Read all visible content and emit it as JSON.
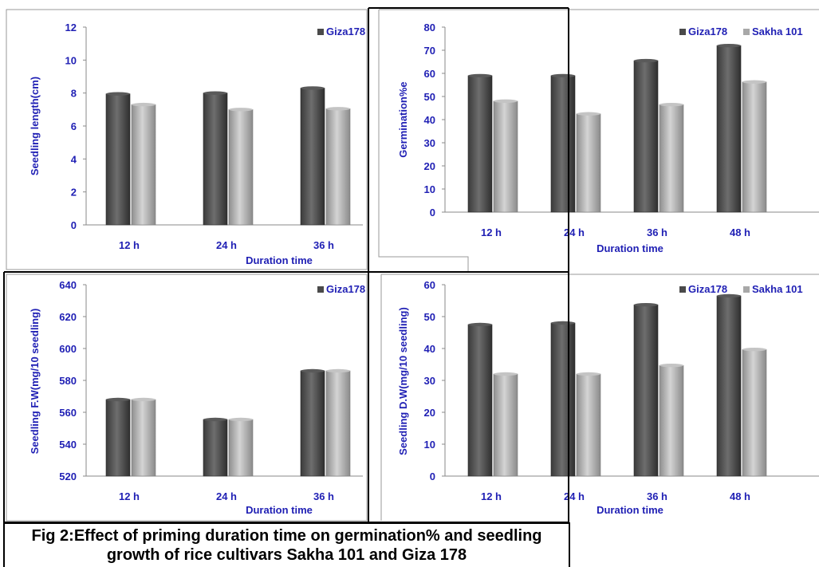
{
  "caption": {
    "line1": "Fig 2:Effect of priming duration time on germination%  and seedling",
    "line2": "growth of rice cultivars Sakha 101 and Giza 178"
  },
  "colors": {
    "axis_text": "#1f1fb4",
    "series_dark": "#4a4a4a",
    "series_light": "#a8a8a8"
  },
  "chart_data": [
    {
      "type": "bar",
      "categories": [
        "12 h",
        "24 h",
        "36 h"
      ],
      "series": [
        {
          "name": "Giza178",
          "values": [
            7.95,
            8.0,
            8.3
          ]
        },
        {
          "values": [
            7.3,
            7.0,
            7.05
          ]
        }
      ],
      "xlabel": "Duration time",
      "ylabel": "Seedling length(cm)",
      "ylim": [
        0,
        12
      ],
      "yticks": [
        0,
        2,
        4,
        6,
        8,
        10,
        12
      ],
      "legend_labels": [
        "Giza178"
      ],
      "legend": "top-right",
      "grid": false
    },
    {
      "type": "bar",
      "categories": [
        "12 h",
        "24 h",
        "36 h",
        "48 h"
      ],
      "series": [
        {
          "name": "Giza178",
          "values": [
            59,
            59,
            65.5,
            72
          ]
        },
        {
          "name": "Sakha 101",
          "values": [
            48,
            42.5,
            46.5,
            56.3
          ]
        }
      ],
      "xlabel": "Duration time",
      "ylabel": "Germination%e",
      "ylim": [
        0,
        80
      ],
      "yticks": [
        0,
        10,
        20,
        30,
        40,
        50,
        60,
        70,
        80
      ],
      "legend_labels": [
        "Giza178",
        "Sakha 101"
      ],
      "legend": "top-right",
      "grid": false
    },
    {
      "type": "bar",
      "categories": [
        "12 h",
        "24 h",
        "36 h"
      ],
      "series": [
        {
          "name": "Giza178",
          "values": [
            568,
            555.5,
            586
          ]
        },
        {
          "values": [
            568,
            555.5,
            586
          ]
        }
      ],
      "xlabel": "Duration time",
      "ylabel": "Seedling F.W(mg/10 seedling)",
      "ylim": [
        520,
        640
      ],
      "yticks": [
        520,
        540,
        560,
        580,
        600,
        620,
        640
      ],
      "legend_labels": [
        "Giza178"
      ],
      "legend": "top-right",
      "grid": false
    },
    {
      "type": "bar",
      "categories": [
        "12 h",
        "24 h",
        "36 h",
        "48 h"
      ],
      "series": [
        {
          "name": "Giza178",
          "values": [
            47.5,
            48,
            53.7,
            56.5
          ]
        },
        {
          "name": "Sakha 101",
          "values": [
            32,
            32,
            34.7,
            39.7
          ]
        }
      ],
      "xlabel": "Duration time",
      "ylabel": "Seedling D.W(mg/10 seedling)",
      "ylim": [
        0,
        60
      ],
      "yticks": [
        0,
        10,
        20,
        30,
        40,
        50,
        60
      ],
      "legend_labels": [
        "Giza178",
        "Sakha 101"
      ],
      "legend": "top-right",
      "grid": false
    }
  ]
}
